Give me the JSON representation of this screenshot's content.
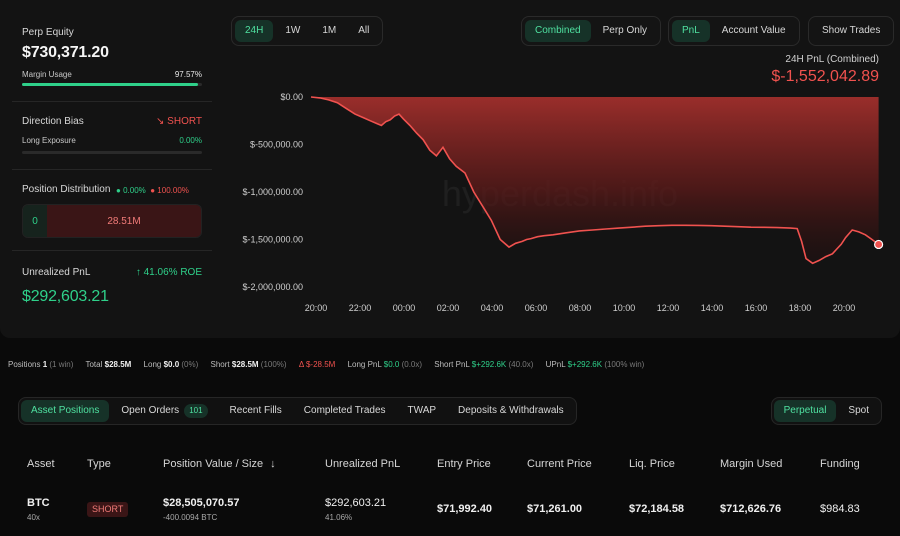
{
  "summary": {
    "perp_equity_label": "Perp Equity",
    "perp_equity_value": "$730,371.20",
    "margin_usage_label": "Margin Usage",
    "margin_usage_value": "97.57%",
    "margin_usage_fraction": 0.9757,
    "direction_bias_label": "Direction Bias",
    "direction_bias_value": "SHORT",
    "long_exposure_label": "Long Exposure",
    "long_exposure_value": "0.00%",
    "position_distribution_label": "Position Distribution",
    "dist_long_pct": "0.00%",
    "dist_short_pct": "100.00%",
    "dist_long_value": "0",
    "dist_short_value": "28.51M",
    "unrealized_pnl_label": "Unrealized PnL",
    "roe_value": "41.06% ROE",
    "unrealized_pnl_value": "$292,603.21"
  },
  "controls": {
    "timeframes": [
      "24H",
      "1W",
      "1M",
      "All"
    ],
    "scope": [
      "Combined",
      "Perp Only"
    ],
    "metric": [
      "PnL",
      "Account Value"
    ],
    "show_trades": "Show Trades"
  },
  "pnl_header": {
    "label": "24H PnL (Combined)",
    "value": "$-1,552,042.89"
  },
  "watermark": "hyperdash.info",
  "chart_data": {
    "type": "area",
    "y_ticks": [
      "$0.00",
      "$-500,000.00",
      "$-1,000,000.00",
      "$-1,500,000.00",
      "$-2,000,000.00"
    ],
    "x_ticks": [
      "20:00",
      "22:00",
      "00:00",
      "02:00",
      "04:00",
      "06:00",
      "08:00",
      "10:00",
      "12:00",
      "14:00",
      "16:00",
      "18:00",
      "20:00"
    ],
    "ylim": [
      -2000000,
      0
    ],
    "x_hours": [
      0,
      1,
      2,
      3,
      4,
      5,
      6,
      7,
      8,
      9,
      10,
      11,
      12,
      13,
      14,
      15,
      16,
      17,
      18,
      19,
      20,
      21,
      22,
      23,
      24,
      25,
      26
    ],
    "x": [
      0,
      0.4,
      0.8,
      1.2,
      1.6,
      2.0,
      2.4,
      2.7,
      3.0,
      3.2,
      3.4,
      3.6,
      3.8,
      4.0,
      4.2,
      4.5,
      4.8,
      5.1,
      5.4,
      5.7,
      6.0,
      6.3,
      6.6,
      7.0,
      7.4,
      7.8,
      8.2,
      8.6,
      9.0,
      9.3,
      9.6,
      9.8,
      10.0,
      10.3,
      10.6,
      11.0,
      11.6,
      12.2,
      12.8,
      13.4,
      14.0,
      14.6,
      15.2,
      15.8,
      16.4,
      17.0,
      17.6,
      18.2,
      18.8,
      19.4,
      20.0,
      20.6,
      21.2,
      21.8,
      22.1,
      22.3,
      22.5,
      22.8,
      23.1,
      23.4,
      23.7,
      23.9,
      24.1,
      24.3,
      24.6,
      24.9,
      25.2,
      25.5,
      25.8
    ],
    "values": [
      0,
      -10000,
      -30000,
      -60000,
      -120000,
      -180000,
      -220000,
      -250000,
      -280000,
      -300000,
      -260000,
      -240000,
      -200000,
      -180000,
      -230000,
      -300000,
      -380000,
      -450000,
      -560000,
      -620000,
      -530000,
      -650000,
      -730000,
      -800000,
      -1000000,
      -1150000,
      -1300000,
      -1500000,
      -1580000,
      -1540000,
      -1520000,
      -1500000,
      -1490000,
      -1470000,
      -1460000,
      -1450000,
      -1430000,
      -1410000,
      -1400000,
      -1390000,
      -1380000,
      -1370000,
      -1360000,
      -1355000,
      -1350000,
      -1350000,
      -1352000,
      -1355000,
      -1360000,
      -1365000,
      -1370000,
      -1372000,
      -1375000,
      -1380000,
      -1385000,
      -1520000,
      -1700000,
      -1750000,
      -1720000,
      -1680000,
      -1650000,
      -1600000,
      -1550000,
      -1480000,
      -1400000,
      -1420000,
      -1450000,
      -1500000,
      -1552042.89
    ]
  },
  "stats_bar": {
    "positions_label": "Positions",
    "positions_value": "1",
    "positions_note": "(1 win)",
    "total_label": "Total",
    "total_value": "$28.5M",
    "long_label": "Long",
    "long_value": "$0.0",
    "long_note": "(0%)",
    "short_label": "Short",
    "short_value": "$28.5M",
    "short_note": "(100%)",
    "delta_label": "Δ",
    "delta_value": "$-28.5M",
    "long_pnl_label": "Long PnL",
    "long_pnl_value": "$0.0",
    "long_pnl_note": "(0.0x)",
    "short_pnl_label": "Short PnL",
    "short_pnl_value": "$+292.6K",
    "short_pnl_note": "(40.0x)",
    "upnl_label": "UPnL",
    "upnl_value": "$+292.6K",
    "upnl_note": "(100% win)"
  },
  "tabs": {
    "items": [
      "Asset Positions",
      "Open Orders",
      "Recent Fills",
      "Completed Trades",
      "TWAP",
      "Deposits & Withdrawals"
    ],
    "open_orders_count": "101",
    "market": [
      "Perpetual",
      "Spot"
    ]
  },
  "table": {
    "headers": [
      "Asset",
      "Type",
      "Position Value / Size",
      "Unrealized PnL",
      "Entry Price",
      "Current Price",
      "Liq. Price",
      "Margin Used",
      "Funding"
    ],
    "sort_icon": "arrow-down-icon",
    "rows": [
      {
        "asset": "BTC",
        "leverage": "40x",
        "type": "SHORT",
        "position_value": "$28,505,070.57",
        "size": "-400.0094 BTC",
        "unrealized_pnl": "$292,603.21",
        "roe": "41.06%",
        "entry_price": "$71,992.40",
        "current_price": "$71,261.00",
        "liq_price": "$72,184.58",
        "margin_used": "$712,626.76",
        "funding": "$984.83"
      }
    ]
  }
}
